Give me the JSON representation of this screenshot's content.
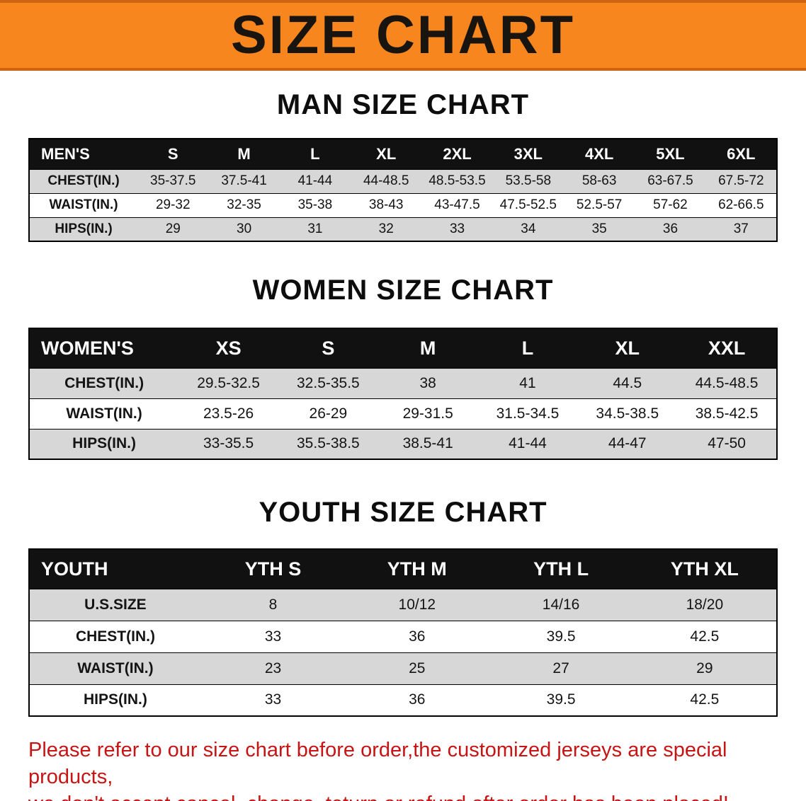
{
  "banner": {
    "title": "SIZE CHART",
    "bg": "#f6861d"
  },
  "sections": [
    {
      "heading": "MAN SIZE CHART",
      "table": {
        "header": [
          "MEN'S",
          "S",
          "M",
          "L",
          "XL",
          "2XL",
          "3XL",
          "4XL",
          "5XL",
          "6XL"
        ],
        "rows": [
          [
            "CHEST(IN.)",
            "35-37.5",
            "37.5-41",
            "41-44",
            "44-48.5",
            "48.5-53.5",
            "53.5-58",
            "58-63",
            "63-67.5",
            "67.5-72"
          ],
          [
            "WAIST(IN.)",
            "29-32",
            "32-35",
            "35-38",
            "38-43",
            "43-47.5",
            "47.5-52.5",
            "52.5-57",
            "57-62",
            "62-66.5"
          ],
          [
            "HIPS(IN.)",
            "29",
            "30",
            "31",
            "32",
            "33",
            "34",
            "35",
            "36",
            "37"
          ]
        ]
      }
    },
    {
      "heading": "WOMEN SIZE CHART",
      "table": {
        "header": [
          "WOMEN'S",
          "XS",
          "S",
          "M",
          "L",
          "XL",
          "XXL"
        ],
        "rows": [
          [
            "CHEST(IN.)",
            "29.5-32.5",
            "32.5-35.5",
            "38",
            "41",
            "44.5",
            "44.5-48.5"
          ],
          [
            "WAIST(IN.)",
            "23.5-26",
            "26-29",
            "29-31.5",
            "31.5-34.5",
            "34.5-38.5",
            "38.5-42.5"
          ],
          [
            "HIPS(IN.)",
            "33-35.5",
            "35.5-38.5",
            "38.5-41",
            "41-44",
            "44-47",
            "47-50"
          ]
        ]
      }
    },
    {
      "heading": "YOUTH SIZE CHART",
      "table": {
        "header": [
          "YOUTH",
          "YTH S",
          "YTH M",
          "YTH L",
          "YTH XL"
        ],
        "rows": [
          [
            "U.S.SIZE",
            "8",
            "10/12",
            "14/16",
            "18/20"
          ],
          [
            "CHEST(IN.)",
            "33",
            "36",
            "39.5",
            "42.5"
          ],
          [
            "WAIST(IN.)",
            "23",
            "25",
            "27",
            "29"
          ],
          [
            "HIPS(IN.)",
            "33",
            "36",
            "39.5",
            "42.5"
          ]
        ]
      }
    }
  ],
  "disclaimer": {
    "line1": "Please refer to our size chart before order,the customized jerseys are special products,",
    "line2": "we don't accept cancel, change, teturn or refund after order has been placed!"
  }
}
